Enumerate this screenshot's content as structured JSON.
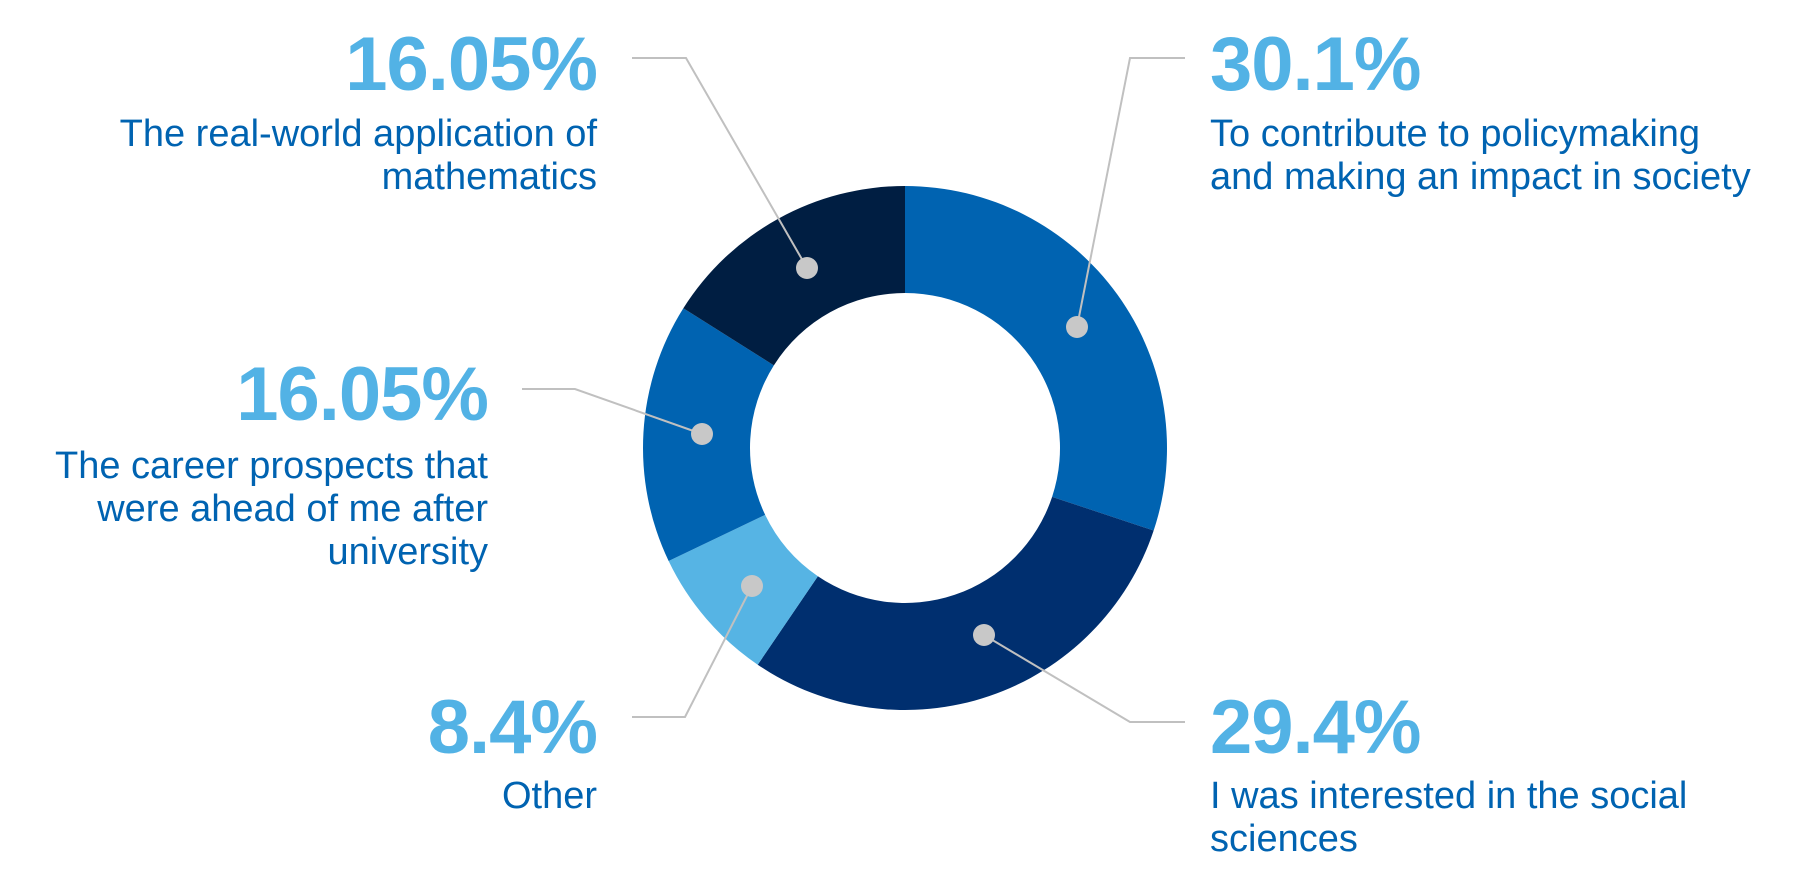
{
  "chart_data": {
    "type": "pie",
    "donut": true,
    "legend": "callouts around the donut",
    "slices": [
      {
        "value_label": "30.1%",
        "value": 30.1,
        "label_lines": [
          "To contribute to policymaking",
          "and making an impact in society"
        ],
        "color": "#0063b1"
      },
      {
        "value_label": "29.4%",
        "value": 29.4,
        "label_lines": [
          "I was interested in the social",
          "sciences"
        ],
        "color": "#002f6f"
      },
      {
        "value_label": "8.4%",
        "value": 8.4,
        "label_lines": [
          "Other"
        ],
        "color": "#56b4e4"
      },
      {
        "value_label": "16.05%",
        "value": 16.05,
        "label_lines": [
          "The career prospects that",
          "were ahead of me after",
          "university"
        ],
        "color": "#0063b1"
      },
      {
        "value_label": "16.05%",
        "value": 16.05,
        "label_lines": [
          "The real-world application of",
          "mathematics"
        ],
        "color": "#001e42"
      }
    ]
  },
  "colors": {
    "percent_text": "#52b2e5",
    "label_text": "#0063b1",
    "leader_line": "#c0c0c0",
    "marker_dot": "#c8c8c8"
  }
}
